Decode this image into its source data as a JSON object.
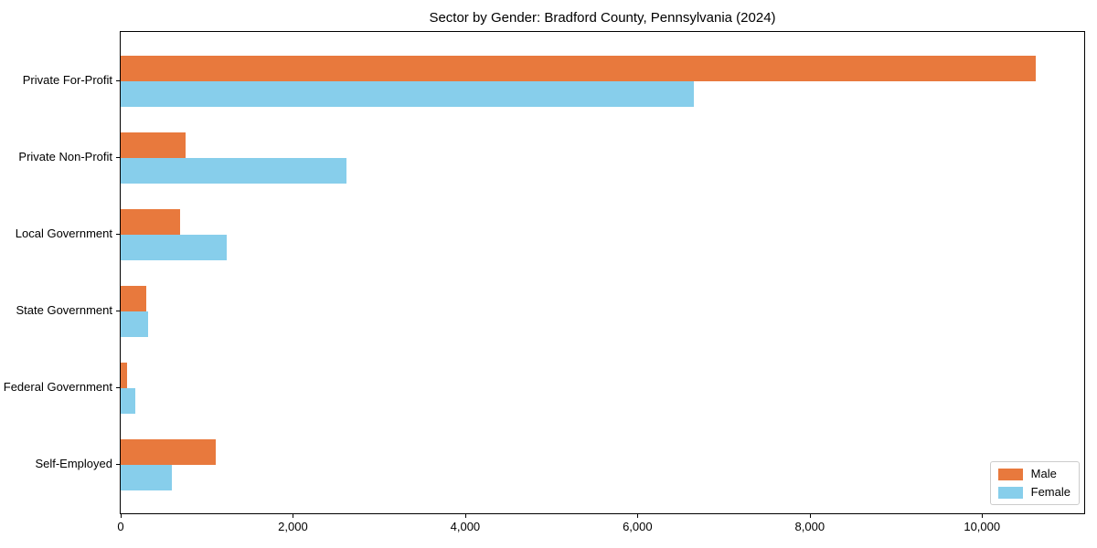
{
  "chart_data": {
    "type": "bar",
    "orientation": "horizontal",
    "title": "Sector by Gender: Bradford County, Pennsylvania (2024)",
    "xlabel": "",
    "ylabel": "",
    "categories": [
      "Private For-Profit",
      "Private Non-Profit",
      "Local Government",
      "State Government",
      "Federal Government",
      "Self-Employed"
    ],
    "series": [
      {
        "name": "Male",
        "color": "#e8793d",
        "values": [
          10620,
          750,
          690,
          300,
          75,
          1100
        ]
      },
      {
        "name": "Female",
        "color": "#87ceeb",
        "values": [
          6650,
          2620,
          1230,
          320,
          170,
          590
        ]
      }
    ],
    "xlim": [
      0,
      11186
    ],
    "x_ticks": [
      0,
      2000,
      4000,
      6000,
      8000,
      10000
    ],
    "x_tick_labels": [
      "0",
      "2,000",
      "4,000",
      "6,000",
      "8,000",
      "10,000"
    ],
    "grid": false,
    "legend_position": "lower right",
    "frame_color": "#000000",
    "background_color": "#ffffff"
  }
}
